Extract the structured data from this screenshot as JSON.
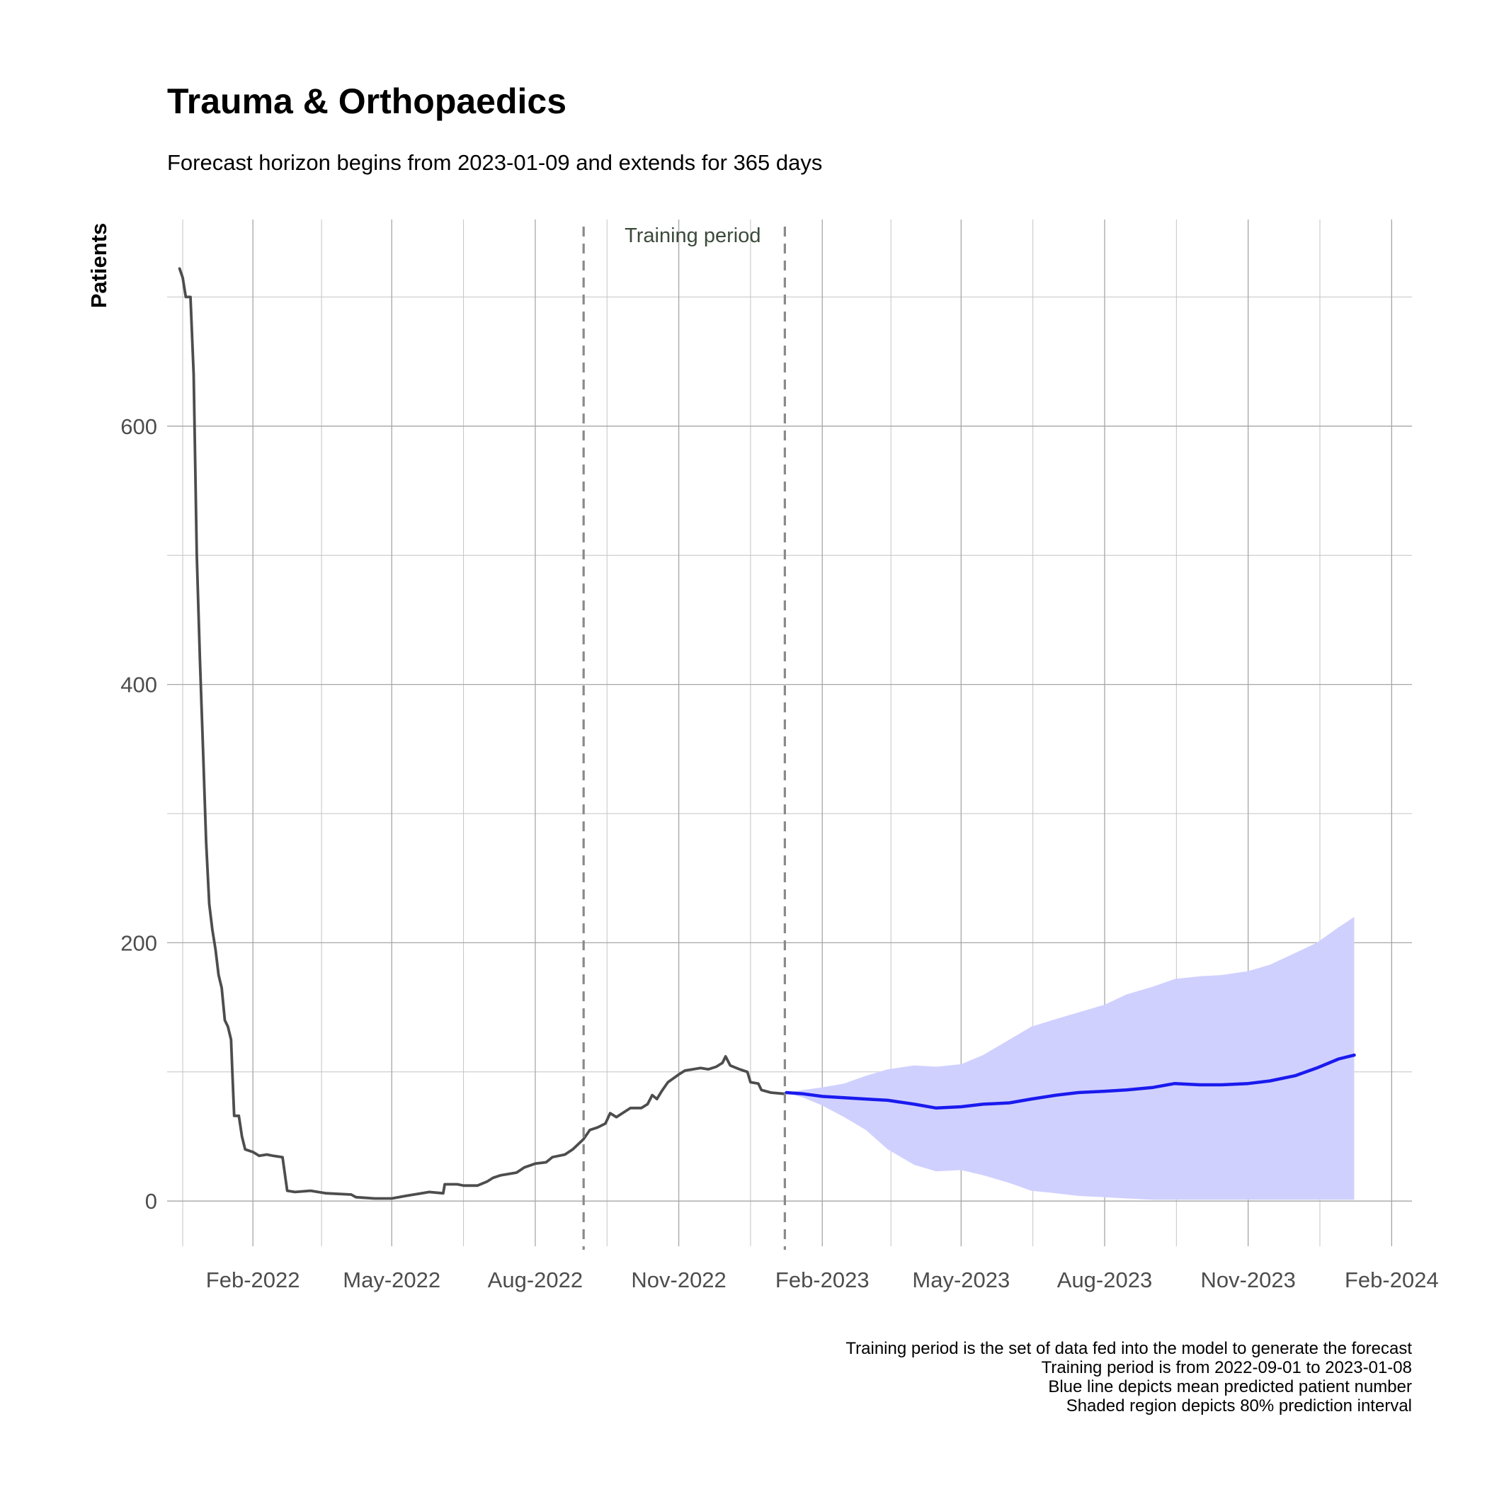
{
  "chart_data": {
    "type": "line",
    "title": "Trauma & Orthopaedics",
    "subtitle": "Forecast horizon begins from 2023-01-09 and extends for 365 days",
    "xlabel": "",
    "ylabel": "Patients",
    "xlim": [
      "2021-12-08",
      "2024-02-14"
    ],
    "ylim": [
      -35,
      760
    ],
    "x_ticks": [
      "2022-02-01",
      "2022-05-01",
      "2022-08-01",
      "2022-11-01",
      "2023-02-01",
      "2023-05-01",
      "2023-08-01",
      "2023-11-01",
      "2024-02-01"
    ],
    "x_tick_labels": [
      "Feb-2022",
      "May-2022",
      "Aug-2022",
      "Nov-2022",
      "Feb-2023",
      "May-2023",
      "Aug-2023",
      "Nov-2023",
      "Feb-2024"
    ],
    "y_ticks": [
      0,
      200,
      400,
      600
    ],
    "grid": true,
    "training_period": {
      "label": "Training period",
      "start": "2022-09-01",
      "end": "2023-01-08"
    },
    "series": [
      {
        "role": "observed",
        "color": "#4d4d4d",
        "points": [
          [
            "2021-12-16",
            722
          ],
          [
            "2021-12-18",
            715
          ],
          [
            "2021-12-20",
            700
          ],
          [
            "2021-12-23",
            700
          ],
          [
            "2021-12-25",
            640
          ],
          [
            "2021-12-27",
            500
          ],
          [
            "2021-12-29",
            420
          ],
          [
            "2021-12-31",
            350
          ],
          [
            "2022-01-02",
            278
          ],
          [
            "2022-01-04",
            230
          ],
          [
            "2022-01-06",
            210
          ],
          [
            "2022-01-08",
            195
          ],
          [
            "2022-01-10",
            175
          ],
          [
            "2022-01-12",
            165
          ],
          [
            "2022-01-14",
            140
          ],
          [
            "2022-01-16",
            135
          ],
          [
            "2022-01-18",
            125
          ],
          [
            "2022-01-19",
            95
          ],
          [
            "2022-01-20",
            66
          ],
          [
            "2022-01-23",
            66
          ],
          [
            "2022-01-25",
            50
          ],
          [
            "2022-01-27",
            40
          ],
          [
            "2022-02-01",
            38
          ],
          [
            "2022-02-05",
            35
          ],
          [
            "2022-02-10",
            36
          ],
          [
            "2022-02-14",
            35
          ],
          [
            "2022-02-20",
            34
          ],
          [
            "2022-02-23",
            8
          ],
          [
            "2022-02-28",
            7
          ],
          [
            "2022-03-10",
            8
          ],
          [
            "2022-03-20",
            6
          ],
          [
            "2022-04-05",
            5
          ],
          [
            "2022-04-08",
            3
          ],
          [
            "2022-04-20",
            2
          ],
          [
            "2022-05-01",
            2
          ],
          [
            "2022-05-10",
            4
          ],
          [
            "2022-05-20",
            6
          ],
          [
            "2022-05-25",
            7
          ],
          [
            "2022-06-03",
            6
          ],
          [
            "2022-06-04",
            13
          ],
          [
            "2022-06-12",
            13
          ],
          [
            "2022-06-16",
            12
          ],
          [
            "2022-06-25",
            12
          ],
          [
            "2022-07-01",
            15
          ],
          [
            "2022-07-05",
            18
          ],
          [
            "2022-07-10",
            20
          ],
          [
            "2022-07-20",
            22
          ],
          [
            "2022-07-25",
            26
          ],
          [
            "2022-08-01",
            29
          ],
          [
            "2022-08-08",
            30
          ],
          [
            "2022-08-12",
            34
          ],
          [
            "2022-08-20",
            36
          ],
          [
            "2022-08-25",
            40
          ],
          [
            "2022-09-01",
            48
          ],
          [
            "2022-09-05",
            55
          ],
          [
            "2022-09-10",
            57
          ],
          [
            "2022-09-15",
            60
          ],
          [
            "2022-09-18",
            68
          ],
          [
            "2022-09-22",
            65
          ],
          [
            "2022-10-01",
            72
          ],
          [
            "2022-10-08",
            72
          ],
          [
            "2022-10-12",
            75
          ],
          [
            "2022-10-15",
            82
          ],
          [
            "2022-10-18",
            79
          ],
          [
            "2022-10-21",
            85
          ],
          [
            "2022-10-25",
            92
          ],
          [
            "2022-11-01",
            98
          ],
          [
            "2022-11-05",
            101
          ],
          [
            "2022-11-10",
            102
          ],
          [
            "2022-11-15",
            103
          ],
          [
            "2022-11-20",
            102
          ],
          [
            "2022-11-25",
            104
          ],
          [
            "2022-11-29",
            107
          ],
          [
            "2022-12-01",
            112
          ],
          [
            "2022-12-04",
            105
          ],
          [
            "2022-12-10",
            102
          ],
          [
            "2022-12-15",
            100
          ],
          [
            "2022-12-17",
            92
          ],
          [
            "2022-12-22",
            91
          ],
          [
            "2022-12-24",
            86
          ],
          [
            "2022-12-30",
            84
          ],
          [
            "2023-01-08",
            83
          ]
        ]
      },
      {
        "role": "forecast mean",
        "color": "#1a1aee",
        "points": [
          [
            "2023-01-09",
            84
          ],
          [
            "2023-01-20",
            83
          ],
          [
            "2023-02-01",
            81
          ],
          [
            "2023-02-15",
            80
          ],
          [
            "2023-03-01",
            79
          ],
          [
            "2023-03-15",
            78
          ],
          [
            "2023-04-01",
            75
          ],
          [
            "2023-04-15",
            72
          ],
          [
            "2023-05-01",
            73
          ],
          [
            "2023-05-15",
            75
          ],
          [
            "2023-06-01",
            76
          ],
          [
            "2023-06-15",
            79
          ],
          [
            "2023-07-01",
            82
          ],
          [
            "2023-07-15",
            84
          ],
          [
            "2023-08-01",
            85
          ],
          [
            "2023-08-15",
            86
          ],
          [
            "2023-09-01",
            88
          ],
          [
            "2023-09-15",
            91
          ],
          [
            "2023-10-01",
            90
          ],
          [
            "2023-10-15",
            90
          ],
          [
            "2023-11-01",
            91
          ],
          [
            "2023-11-15",
            93
          ],
          [
            "2023-12-01",
            97
          ],
          [
            "2023-12-15",
            103
          ],
          [
            "2023-12-29",
            110
          ],
          [
            "2024-01-08",
            113
          ]
        ]
      }
    ],
    "interval": {
      "level": "80%",
      "color": "#d0d0ff",
      "upper": [
        [
          "2023-01-09",
          84
        ],
        [
          "2023-01-20",
          86
        ],
        [
          "2023-02-01",
          88
        ],
        [
          "2023-02-15",
          91
        ],
        [
          "2023-03-01",
          97
        ],
        [
          "2023-03-15",
          102
        ],
        [
          "2023-04-01",
          105
        ],
        [
          "2023-04-15",
          104
        ],
        [
          "2023-05-01",
          106
        ],
        [
          "2023-05-15",
          113
        ],
        [
          "2023-06-01",
          125
        ],
        [
          "2023-06-15",
          135
        ],
        [
          "2023-07-01",
          141
        ],
        [
          "2023-07-15",
          146
        ],
        [
          "2023-08-01",
          152
        ],
        [
          "2023-08-15",
          160
        ],
        [
          "2023-09-01",
          166
        ],
        [
          "2023-09-15",
          172
        ],
        [
          "2023-10-01",
          174
        ],
        [
          "2023-10-15",
          175
        ],
        [
          "2023-11-01",
          178
        ],
        [
          "2023-11-15",
          183
        ],
        [
          "2023-12-01",
          192
        ],
        [
          "2023-12-15",
          200
        ],
        [
          "2023-12-29",
          212
        ],
        [
          "2024-01-08",
          220
        ]
      ],
      "lower": [
        [
          "2023-01-09",
          84
        ],
        [
          "2023-01-20",
          80
        ],
        [
          "2023-02-01",
          74
        ],
        [
          "2023-02-15",
          65
        ],
        [
          "2023-03-01",
          55
        ],
        [
          "2023-03-15",
          40
        ],
        [
          "2023-04-01",
          28
        ],
        [
          "2023-04-15",
          23
        ],
        [
          "2023-05-01",
          24
        ],
        [
          "2023-05-15",
          20
        ],
        [
          "2023-06-01",
          14
        ],
        [
          "2023-06-15",
          8
        ],
        [
          "2023-07-01",
          6
        ],
        [
          "2023-07-15",
          4
        ],
        [
          "2023-08-01",
          3
        ],
        [
          "2023-08-15",
          2
        ],
        [
          "2023-09-01",
          1
        ],
        [
          "2023-10-01",
          1
        ],
        [
          "2023-11-01",
          1
        ],
        [
          "2023-12-01",
          1
        ],
        [
          "2024-01-08",
          1
        ]
      ]
    },
    "notes": [
      "Training period is the set of data fed into the model to generate the forecast",
      "Training period is from 2022-09-01 to 2023-01-08",
      "Blue line depicts mean predicted patient number",
      "Shaded region depicts 80% prediction interval"
    ]
  }
}
